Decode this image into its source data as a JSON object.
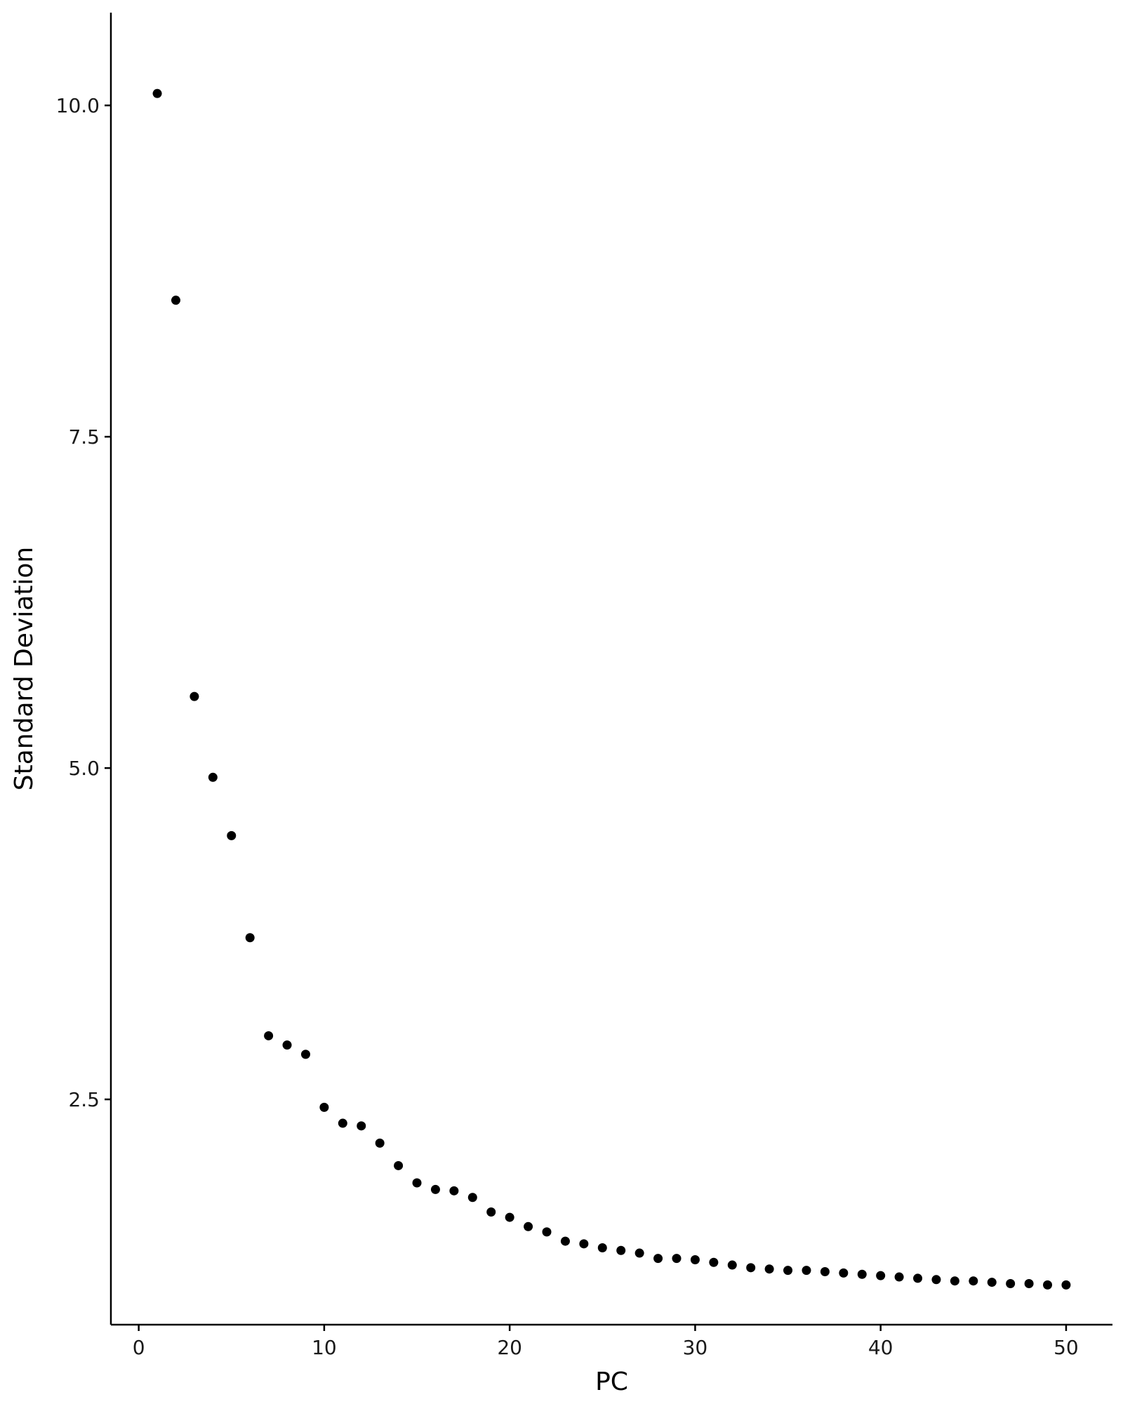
{
  "chart_data": {
    "type": "scatter",
    "title": "",
    "xlabel": "PC",
    "ylabel": "Standard Deviation",
    "x_ticks": [
      0,
      10,
      20,
      30,
      40,
      50
    ],
    "x_tick_labels": [
      "0",
      "10",
      "20",
      "30",
      "40",
      "50"
    ],
    "y_ticks": [
      2.5,
      5.0,
      7.5,
      10.0
    ],
    "y_tick_labels": [
      "2.5",
      "5.0",
      "7.5",
      "10.0"
    ],
    "xlim": [
      -1.5,
      52.5
    ],
    "ylim": [
      0.8,
      10.7
    ],
    "grid": false,
    "legend": "none",
    "point_color": "#000000",
    "axis_color": "#000000",
    "x": [
      1,
      2,
      3,
      4,
      5,
      6,
      7,
      8,
      9,
      10,
      11,
      12,
      13,
      14,
      15,
      16,
      17,
      18,
      19,
      20,
      21,
      22,
      23,
      24,
      25,
      26,
      27,
      28,
      29,
      30,
      31,
      32,
      33,
      34,
      35,
      36,
      37,
      38,
      39,
      40,
      41,
      42,
      43,
      44,
      45,
      46,
      47,
      48,
      49,
      50
    ],
    "y": [
      10.09,
      8.53,
      5.54,
      4.93,
      4.49,
      3.72,
      2.98,
      2.91,
      2.84,
      2.44,
      2.32,
      2.3,
      2.17,
      2.0,
      1.87,
      1.82,
      1.81,
      1.76,
      1.65,
      1.61,
      1.54,
      1.5,
      1.43,
      1.41,
      1.38,
      1.36,
      1.34,
      1.3,
      1.3,
      1.29,
      1.27,
      1.25,
      1.23,
      1.22,
      1.21,
      1.21,
      1.2,
      1.19,
      1.18,
      1.17,
      1.16,
      1.15,
      1.14,
      1.13,
      1.13,
      1.12,
      1.11,
      1.11,
      1.1,
      1.1
    ]
  }
}
